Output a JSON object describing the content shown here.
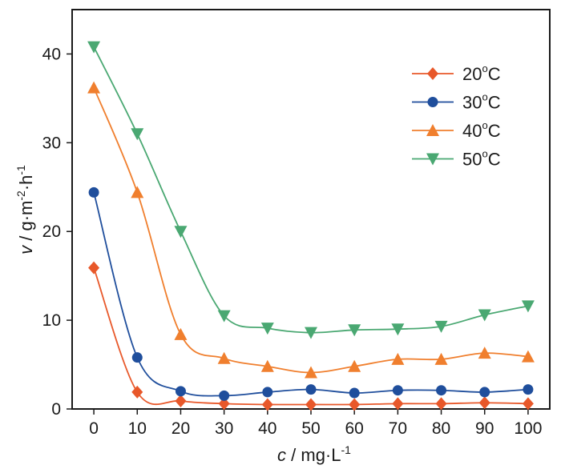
{
  "chart_data": {
    "type": "line",
    "x": [
      0,
      10,
      20,
      30,
      40,
      50,
      60,
      70,
      80,
      90,
      100
    ],
    "xlim": [
      -5,
      105
    ],
    "ylim": [
      0,
      45
    ],
    "xticks": [
      "0",
      "10",
      "20",
      "30",
      "40",
      "50",
      "60",
      "70",
      "80",
      "90",
      "100"
    ],
    "yticks": [
      "0",
      "10",
      "20",
      "30",
      "40"
    ],
    "xlabel": {
      "var": "c",
      "rest": " / mg·L",
      "sup": "-1"
    },
    "ylabel": {
      "var": "v",
      "rest1": " / g·m",
      "sup1": "-2",
      "rest2": "·h",
      "sup2": "-1"
    },
    "grid": false,
    "legend_position": "top-right",
    "series": [
      {
        "name": "20°C",
        "legend_base": "20",
        "legend_sup": "o",
        "legend_tail": "C",
        "color": "#e8582a",
        "marker": "diamond",
        "values": [
          15.9,
          1.9,
          0.9,
          0.6,
          0.5,
          0.5,
          0.5,
          0.6,
          0.6,
          0.7,
          0.6
        ]
      },
      {
        "name": "30°C",
        "legend_base": "30",
        "legend_sup": "o",
        "legend_tail": "C",
        "color": "#1f4e9c",
        "marker": "circle",
        "values": [
          24.4,
          5.8,
          2.0,
          1.5,
          1.9,
          2.2,
          1.8,
          2.1,
          2.1,
          1.9,
          2.2
        ]
      },
      {
        "name": "40°C",
        "legend_base": "40",
        "legend_sup": "o",
        "legend_tail": "C",
        "color": "#f07f2e",
        "marker": "triangle-up",
        "values": [
          36.2,
          24.4,
          8.4,
          5.7,
          4.8,
          4.1,
          4.8,
          5.6,
          5.6,
          6.3,
          5.9
        ]
      },
      {
        "name": "50°C",
        "legend_base": "50",
        "legend_sup": "o",
        "legend_tail": "C",
        "color": "#4aa872",
        "marker": "triangle-down",
        "values": [
          40.8,
          31.0,
          20.0,
          10.5,
          9.1,
          8.6,
          8.9,
          9.0,
          9.3,
          10.6,
          11.6
        ]
      }
    ]
  }
}
